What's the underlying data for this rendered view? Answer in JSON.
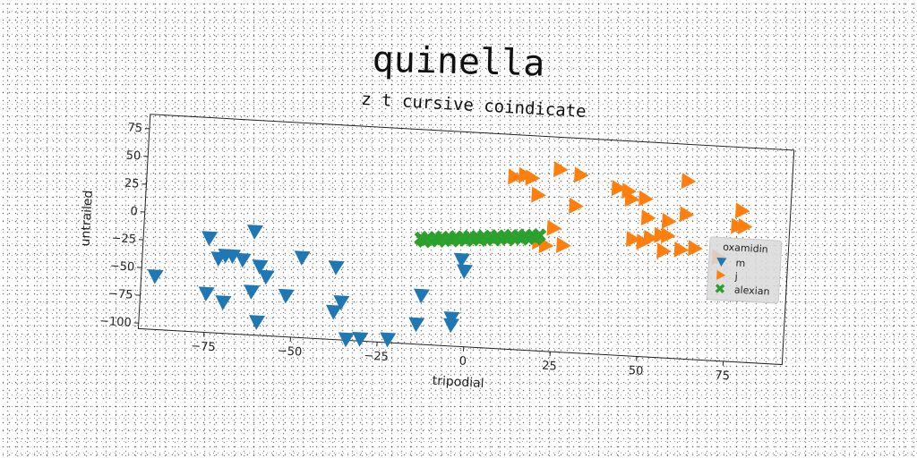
{
  "chart_data": {
    "type": "scatter",
    "title": "quinella",
    "subtitle": "z t cursive coindicate",
    "xlabel": "tripodial",
    "ylabel": "untrailed",
    "xlim": [
      -94,
      92
    ],
    "ylim": [
      -105,
      88
    ],
    "xticks": [
      -75,
      -50,
      -25,
      0,
      25,
      50,
      75
    ],
    "yticks": [
      75,
      50,
      25,
      0,
      -25,
      -50,
      -75,
      -100
    ],
    "grid": false,
    "legend": {
      "title": "oxamidin",
      "position": "right"
    },
    "series": [
      {
        "name": "m",
        "marker": "triangle-down",
        "color": "#1f77b4",
        "x": [
          -90,
          -75,
          -75,
          -72,
          -70,
          -70,
          -68,
          -65,
          -62,
          -62,
          -60,
          -60,
          -58,
          -52,
          -48,
          -38,
          -38,
          -36,
          -34,
          -30,
          -22,
          -14,
          -13,
          -4,
          -4,
          -2,
          -1
        ],
        "y": [
          -57,
          -70,
          -20,
          -38,
          -77,
          -35,
          -35,
          -38,
          -66,
          -12,
          -43,
          -93,
          -52,
          -68,
          -33,
          -40,
          -80,
          -71,
          -104,
          -103,
          -102,
          -87,
          -61,
          -86,
          -80,
          -27,
          -37
        ]
      },
      {
        "name": "j",
        "marker": "triangle-right",
        "color": "#ff7f0e",
        "x": [
          12,
          15,
          17,
          19,
          20,
          22,
          24,
          25,
          27,
          30,
          31,
          42,
          45,
          46,
          47,
          50,
          50,
          51,
          52,
          55,
          56,
          57,
          57,
          61,
          62,
          62,
          65,
          72,
          77,
          78,
          79
        ],
        "y": [
          50,
          52,
          50,
          35,
          -7,
          -10,
          6,
          59,
          -9,
          27,
          55,
          45,
          43,
          36,
          0,
          37,
          -2,
          20,
          2,
          5,
          -9,
          5,
          18,
          -7,
          55,
          25,
          -5,
          -12,
          17,
          31,
          17
        ]
      },
      {
        "name": "alexian",
        "marker": "x",
        "color": "#2ca02c",
        "x": [
          -14,
          -12,
          -10,
          -8,
          -6,
          -4,
          -2,
          0,
          2,
          4,
          6,
          8,
          10,
          12,
          14,
          16,
          18,
          20,
          -13,
          -9,
          -5,
          -1,
          3,
          7,
          11,
          15,
          19
        ],
        "y": [
          -10,
          -9,
          -9,
          -8,
          -8,
          -7,
          -7,
          -6,
          -6,
          -5,
          -5,
          -4,
          -4,
          -3,
          -3,
          -2,
          -2,
          -1,
          -12,
          -11,
          -10,
          -9,
          -8,
          -7,
          -6,
          -5,
          -4
        ]
      }
    ]
  }
}
